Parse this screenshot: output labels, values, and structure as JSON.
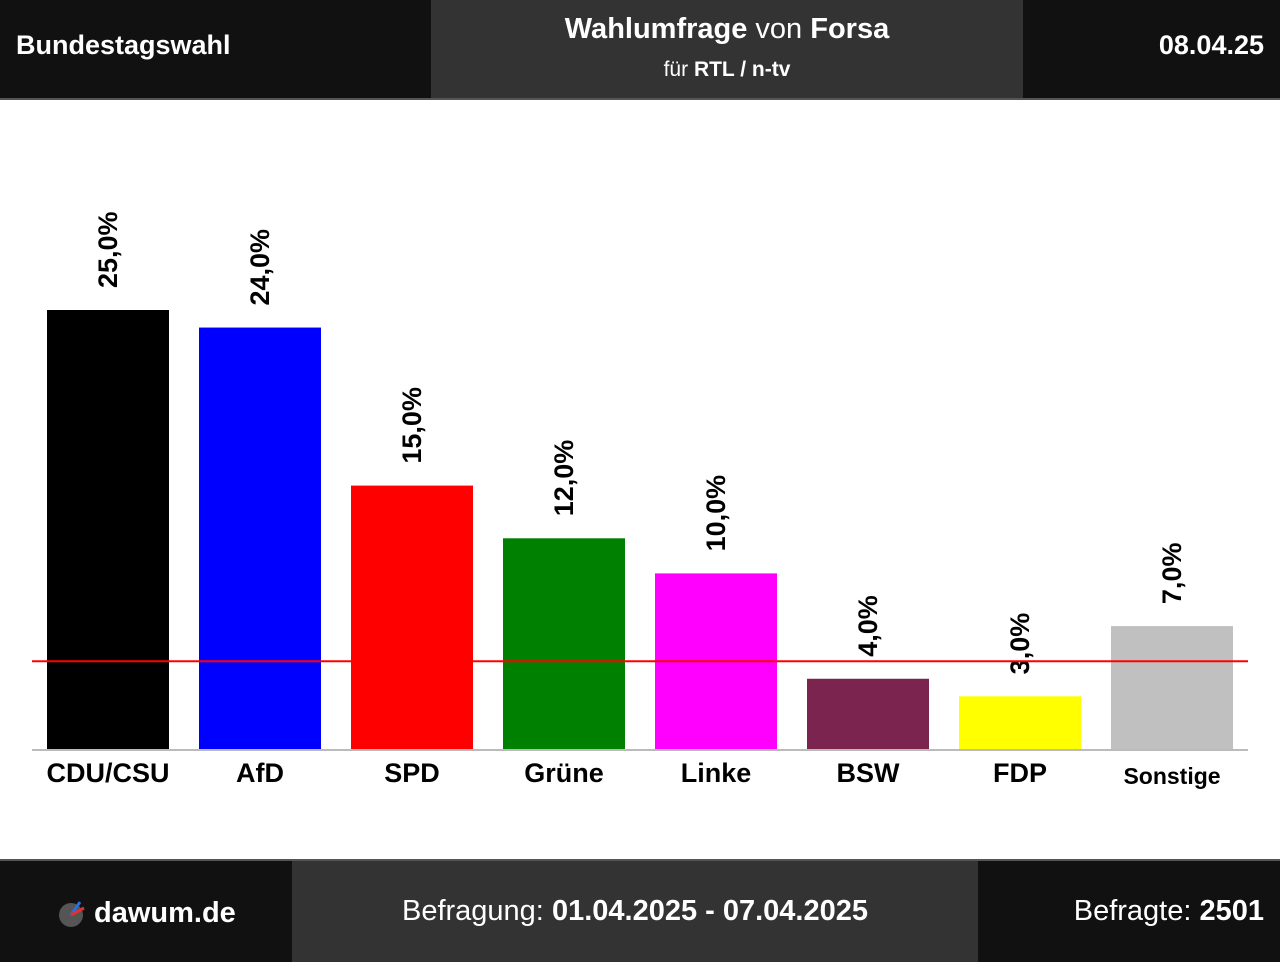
{
  "header": {
    "left": "Bundestagswahl",
    "title_bold": "Wahlumfrage",
    "title_mid": " von ",
    "pollster": "Forsa",
    "sub_pre": "für ",
    "client": "RTL / n-tv",
    "date": "08.04.25"
  },
  "footer": {
    "brand": "dawum.de",
    "period_label": "Befragung: ",
    "period_value": "01.04.2025 - 07.04.2025",
    "sample_label": "Befragte: ",
    "sample_value": "2501"
  },
  "chart_data": {
    "type": "bar",
    "categories": [
      "CDU/CSU",
      "AfD",
      "SPD",
      "Grüne",
      "Linke",
      "BSW",
      "FDP",
      "Sonstige"
    ],
    "values": [
      25.0,
      24.0,
      15.0,
      12.0,
      10.0,
      4.0,
      3.0,
      7.0
    ],
    "value_labels": [
      "25,0%",
      "24,0%",
      "15,0%",
      "12,0%",
      "10,0%",
      "4,0%",
      "3,0%",
      "7,0%"
    ],
    "colors": [
      "#000000",
      "#0000ff",
      "#ff0000",
      "#008000",
      "#ff00ff",
      "#7b2450",
      "#ffff00",
      "#c0c0c0"
    ],
    "threshold": 5,
    "threshold_color": "#ff0000",
    "ylim": [
      0,
      25
    ],
    "grid": false,
    "legend": "none"
  }
}
